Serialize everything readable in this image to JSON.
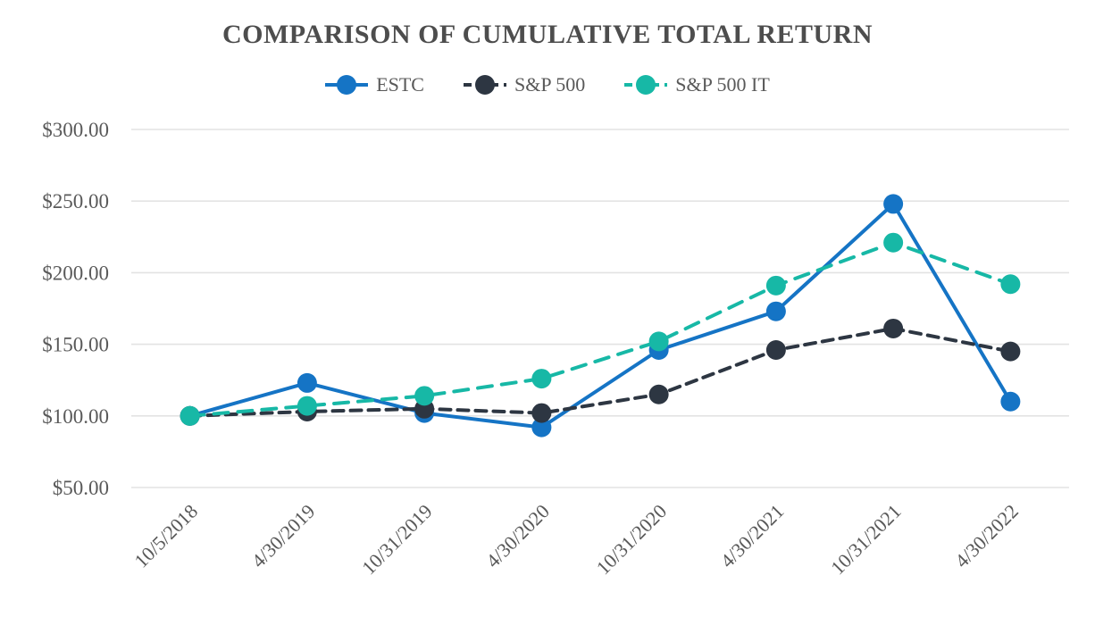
{
  "chart_data": {
    "type": "line",
    "title": "COMPARISON OF CUMULATIVE TOTAL RETURN",
    "categories": [
      "10/5/2018",
      "4/30/2019",
      "10/31/2019",
      "4/30/2020",
      "10/31/2020",
      "4/30/2021",
      "10/31/2021",
      "4/30/2022"
    ],
    "series": [
      {
        "name": "ESTC",
        "color": "#1574c5",
        "line_style": "solid",
        "values": [
          100,
          123,
          102,
          92,
          146,
          173,
          248,
          110
        ]
      },
      {
        "name": "S&P 500",
        "color": "#2d3642",
        "line_style": "dashed",
        "values": [
          100,
          103,
          105,
          102,
          115,
          146,
          161,
          145
        ]
      },
      {
        "name": "S&P 500 IT",
        "color": "#17b8a6",
        "line_style": "dashed",
        "values": [
          100,
          107,
          114,
          126,
          152,
          191,
          221,
          192
        ]
      }
    ],
    "y_axis": {
      "tick_labels": [
        "$300.00",
        "$250.00",
        "$200.00",
        "$150.00",
        "$100.00",
        "$50.00"
      ],
      "tick_values": [
        300,
        250,
        200,
        150,
        100,
        50
      ],
      "unit_prefix": "$"
    },
    "ylim": [
      50,
      300
    ],
    "xlabel": "",
    "ylabel": "",
    "grid": "horizontal",
    "legend_position": "top",
    "colors": {
      "title_text": "#4d4d4d",
      "axis_text": "#595959",
      "gridline": "#e3e3e3",
      "background": "#ffffff"
    }
  }
}
